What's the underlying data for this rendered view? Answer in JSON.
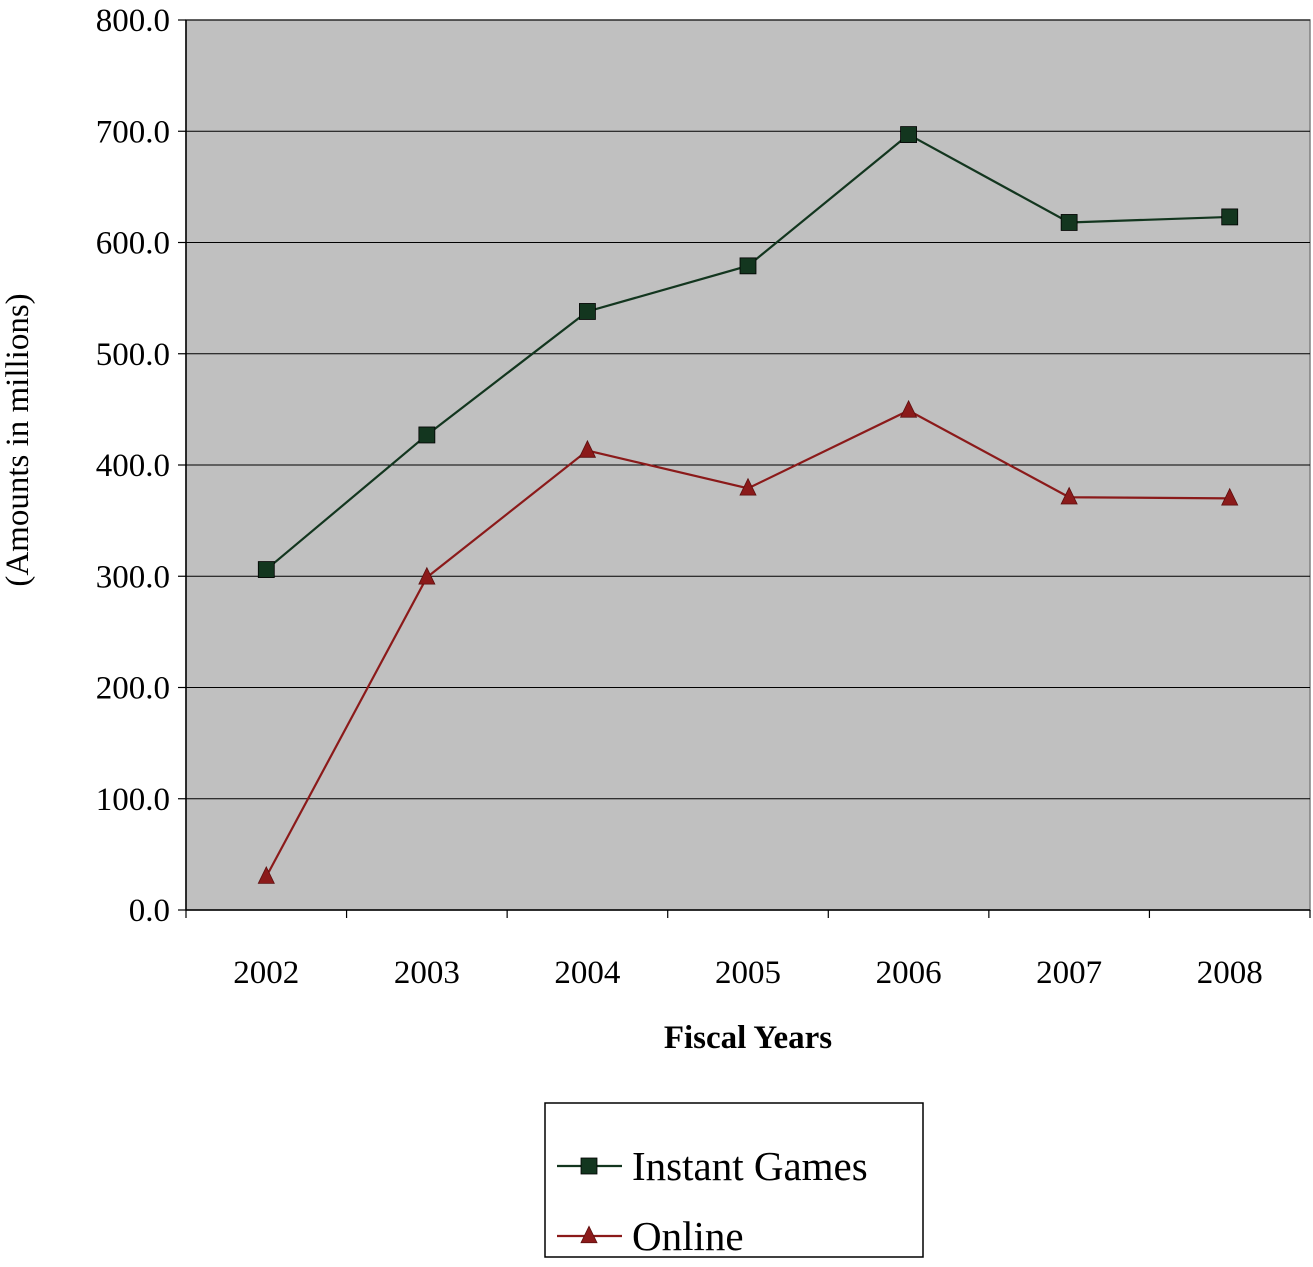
{
  "chart_data": {
    "type": "line",
    "title": "",
    "xlabel": "Fiscal Years",
    "ylabel": "(Amounts in millions)",
    "categories": [
      "2002",
      "2003",
      "2004",
      "2005",
      "2006",
      "2007",
      "2008"
    ],
    "ylim": [
      0,
      800
    ],
    "yticks": [
      "0.0",
      "100.0",
      "200.0",
      "300.0",
      "400.0",
      "500.0",
      "600.0",
      "700.0",
      "800.0"
    ],
    "grid": true,
    "legend_position": "bottom-center",
    "plot_background": "#c0c0c0",
    "series": [
      {
        "name": "Instant Games",
        "color": "#13361f",
        "marker": "square",
        "values": [
          306,
          427,
          538,
          579,
          697,
          618,
          623
        ]
      },
      {
        "name": "Online",
        "color": "#8b1a1a",
        "marker": "triangle",
        "values": [
          30,
          299,
          413,
          379,
          449,
          371,
          370
        ]
      }
    ]
  }
}
